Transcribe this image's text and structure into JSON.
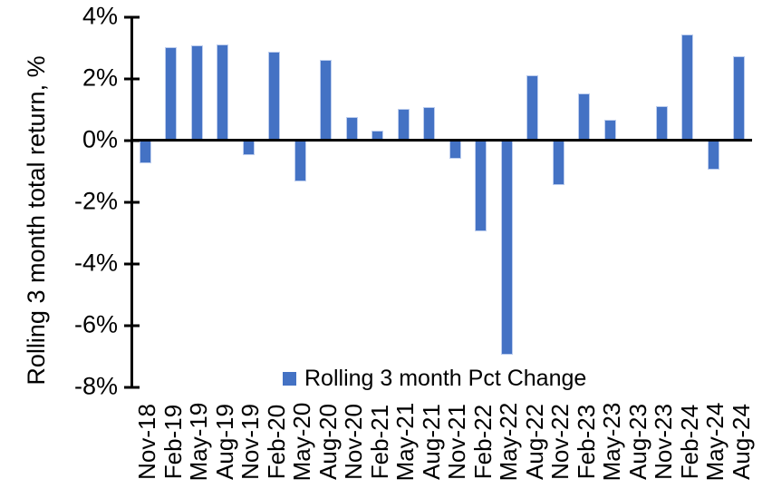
{
  "y_axis": {
    "title": "Rolling 3 month total return, %",
    "tick_labels": [
      "4%",
      "2%",
      "0%",
      "-2%",
      "-4%",
      "-6%",
      "-8%"
    ]
  },
  "legend": {
    "label": "Rolling 3 month Pct Change",
    "swatch_color": "#4472C4"
  },
  "colors": {
    "bar": "#4472C4",
    "axis": "#000000",
    "background": "#FFFFFF"
  },
  "chart_data": {
    "type": "bar",
    "title": "",
    "xlabel": "",
    "ylabel": "Rolling 3 month total return, %",
    "ylim": [
      -8,
      4
    ],
    "ytick_step": 2,
    "grid": false,
    "legend_position": "bottom",
    "bar_color": "#4472C4",
    "categories": [
      "Nov-18",
      "Feb-19",
      "May-19",
      "Aug-19",
      "Nov-19",
      "Feb-20",
      "May-20",
      "Aug-20",
      "Nov-20",
      "Feb-21",
      "May-21",
      "Aug-21",
      "Nov-21",
      "Feb-22",
      "May-22",
      "Aug-22",
      "Nov-22",
      "Feb-23",
      "May-23",
      "Aug-23",
      "Nov-23",
      "Feb-24",
      "May-24",
      "Aug-24"
    ],
    "series": [
      {
        "name": "Rolling 3 month Pct Change",
        "values": [
          -0.7,
          3.0,
          3.05,
          3.1,
          -0.45,
          2.85,
          -1.3,
          2.6,
          0.75,
          0.3,
          1.0,
          1.05,
          -0.55,
          -2.9,
          -6.9,
          2.1,
          -1.4,
          1.5,
          0.65,
          0.0,
          1.1,
          3.4,
          -0.9,
          2.7
        ]
      }
    ]
  }
}
